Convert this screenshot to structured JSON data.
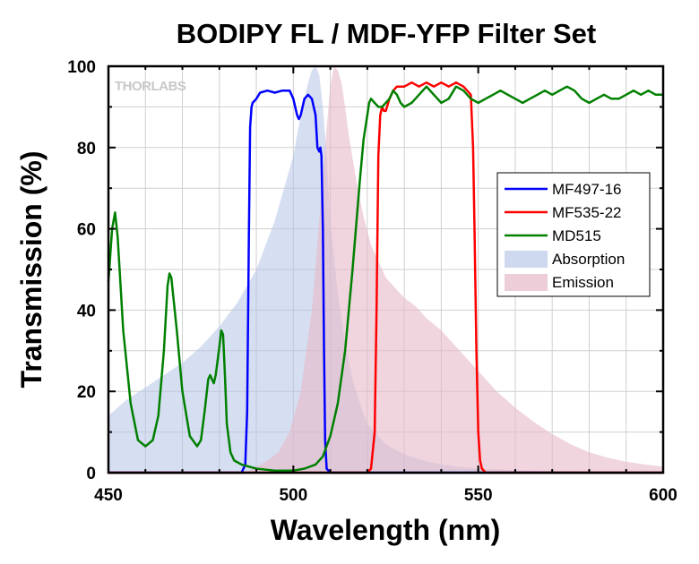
{
  "chart_data": {
    "type": "line",
    "title": "BODIPY FL / MDF-YFP Filter Set",
    "xlabel": "Wavelength (nm)",
    "ylabel": "Transmission (%)",
    "xlim": [
      450,
      600
    ],
    "ylim": [
      0,
      100
    ],
    "xticks": [
      450,
      500,
      550,
      600
    ],
    "yticks": [
      0,
      20,
      40,
      60,
      80,
      100
    ],
    "grid": true,
    "legend_position": "right",
    "watermark": "THORLABS",
    "series": [
      {
        "name": "MF497-16",
        "kind": "line",
        "color": "#0000ff",
        "points": [
          [
            450,
            0
          ],
          [
            486,
            0
          ],
          [
            487,
            2
          ],
          [
            487.5,
            15
          ],
          [
            488,
            60
          ],
          [
            488.3,
            85
          ],
          [
            488.7,
            90
          ],
          [
            489,
            91
          ],
          [
            490,
            92
          ],
          [
            491,
            93.5
          ],
          [
            493,
            94
          ],
          [
            495,
            93.5
          ],
          [
            497,
            94
          ],
          [
            499,
            94
          ],
          [
            500,
            92
          ],
          [
            501,
            88
          ],
          [
            501.5,
            87
          ],
          [
            502,
            88
          ],
          [
            503,
            92
          ],
          [
            504,
            93
          ],
          [
            505,
            92
          ],
          [
            506,
            88
          ],
          [
            506.5,
            80
          ],
          [
            507,
            79
          ],
          [
            507.3,
            80
          ],
          [
            507.6,
            78
          ],
          [
            508,
            60
          ],
          [
            508.3,
            30
          ],
          [
            508.6,
            8
          ],
          [
            509,
            1
          ],
          [
            510,
            0
          ],
          [
            600,
            0
          ]
        ]
      },
      {
        "name": "MF535-22",
        "kind": "line",
        "color": "#ff0000",
        "points": [
          [
            450,
            0
          ],
          [
            520,
            0
          ],
          [
            521,
            1
          ],
          [
            522,
            10
          ],
          [
            522.5,
            40
          ],
          [
            523,
            78
          ],
          [
            523.5,
            88
          ],
          [
            524,
            90
          ],
          [
            524.5,
            89
          ],
          [
            525,
            89
          ],
          [
            526,
            92
          ],
          [
            527,
            94
          ],
          [
            528,
            95
          ],
          [
            530,
            95
          ],
          [
            532,
            96
          ],
          [
            534,
            95
          ],
          [
            536,
            96
          ],
          [
            538,
            95
          ],
          [
            540,
            96
          ],
          [
            542,
            95
          ],
          [
            544,
            96
          ],
          [
            546,
            95
          ],
          [
            547,
            94
          ],
          [
            548,
            93
          ],
          [
            548.6,
            80
          ],
          [
            549,
            60
          ],
          [
            549.5,
            30
          ],
          [
            550,
            10
          ],
          [
            550.5,
            3
          ],
          [
            551,
            1
          ],
          [
            552,
            0
          ],
          [
            600,
            0
          ]
        ]
      },
      {
        "name": "MD515",
        "kind": "line",
        "color": "#008000",
        "points": [
          [
            450,
            47
          ],
          [
            451,
            60
          ],
          [
            451.8,
            64
          ],
          [
            452.5,
            58
          ],
          [
            454,
            35
          ],
          [
            456,
            17
          ],
          [
            458,
            8
          ],
          [
            460,
            6.5
          ],
          [
            462,
            8
          ],
          [
            463.5,
            14
          ],
          [
            465,
            30
          ],
          [
            466,
            46
          ],
          [
            466.5,
            49
          ],
          [
            467,
            48
          ],
          [
            468.5,
            35
          ],
          [
            470,
            20
          ],
          [
            472,
            9
          ],
          [
            474,
            6.5
          ],
          [
            475,
            8
          ],
          [
            476,
            15
          ],
          [
            477,
            23
          ],
          [
            477.5,
            24
          ],
          [
            478,
            23
          ],
          [
            478.5,
            22
          ],
          [
            479,
            24
          ],
          [
            480,
            31
          ],
          [
            480.5,
            35
          ],
          [
            481,
            34
          ],
          [
            481.5,
            24
          ],
          [
            482,
            12
          ],
          [
            483,
            5
          ],
          [
            484,
            3
          ],
          [
            486,
            2
          ],
          [
            488,
            1.5
          ],
          [
            490,
            1
          ],
          [
            495,
            0.5
          ],
          [
            500,
            0.5
          ],
          [
            503,
            1
          ],
          [
            506,
            2
          ],
          [
            508,
            4
          ],
          [
            510,
            9
          ],
          [
            512,
            17
          ],
          [
            514,
            30
          ],
          [
            516,
            50
          ],
          [
            518,
            72
          ],
          [
            519,
            82
          ],
          [
            520,
            88
          ],
          [
            520.5,
            91
          ],
          [
            521,
            92
          ],
          [
            522,
            91
          ],
          [
            523,
            90
          ],
          [
            524,
            90
          ],
          [
            525,
            91
          ],
          [
            526,
            92
          ],
          [
            527,
            94
          ],
          [
            528,
            93
          ],
          [
            529,
            91
          ],
          [
            530,
            90
          ],
          [
            532,
            91
          ],
          [
            534,
            93
          ],
          [
            536,
            95
          ],
          [
            538,
            93
          ],
          [
            540,
            91
          ],
          [
            542,
            92
          ],
          [
            544,
            95
          ],
          [
            546,
            94
          ],
          [
            548,
            92
          ],
          [
            550,
            91
          ],
          [
            552,
            92
          ],
          [
            554,
            93
          ],
          [
            556,
            94
          ],
          [
            558,
            93
          ],
          [
            560,
            92
          ],
          [
            562,
            91
          ],
          [
            564,
            92
          ],
          [
            566,
            93
          ],
          [
            568,
            94
          ],
          [
            570,
            93
          ],
          [
            572,
            94
          ],
          [
            574,
            95
          ],
          [
            576,
            94
          ],
          [
            578,
            92
          ],
          [
            580,
            91
          ],
          [
            582,
            92
          ],
          [
            584,
            93
          ],
          [
            586,
            92
          ],
          [
            588,
            92
          ],
          [
            590,
            93
          ],
          [
            592,
            94
          ],
          [
            594,
            93
          ],
          [
            596,
            94
          ],
          [
            598,
            93
          ],
          [
            600,
            93
          ]
        ]
      },
      {
        "name": "Absorption",
        "kind": "area",
        "color": "#b4c3e6",
        "opacity": 0.55,
        "points": [
          [
            450,
            14
          ],
          [
            455,
            18
          ],
          [
            460,
            21
          ],
          [
            465,
            24
          ],
          [
            470,
            27
          ],
          [
            475,
            31
          ],
          [
            480,
            36
          ],
          [
            485,
            42
          ],
          [
            490,
            50
          ],
          [
            495,
            62
          ],
          [
            500,
            78
          ],
          [
            502,
            88
          ],
          [
            504,
            96
          ],
          [
            505,
            99
          ],
          [
            506,
            100
          ],
          [
            507,
            98
          ],
          [
            508,
            90
          ],
          [
            509,
            78
          ],
          [
            510,
            62
          ],
          [
            512,
            44
          ],
          [
            514,
            32
          ],
          [
            516,
            23
          ],
          [
            518,
            17
          ],
          [
            520,
            12
          ],
          [
            525,
            7
          ],
          [
            530,
            4.5
          ],
          [
            535,
            3
          ],
          [
            540,
            2
          ],
          [
            545,
            1.4
          ],
          [
            550,
            1
          ],
          [
            560,
            0.6
          ],
          [
            570,
            0.4
          ],
          [
            580,
            0.3
          ],
          [
            600,
            0
          ]
        ]
      },
      {
        "name": "Emission",
        "kind": "area",
        "color": "#e6b9c8",
        "opacity": 0.6,
        "points": [
          [
            450,
            0
          ],
          [
            485,
            0
          ],
          [
            488,
            0.5
          ],
          [
            490,
            1.5
          ],
          [
            493,
            3
          ],
          [
            496,
            5
          ],
          [
            499,
            10
          ],
          [
            502,
            20
          ],
          [
            505,
            40
          ],
          [
            507,
            62
          ],
          [
            509,
            85
          ],
          [
            510,
            95
          ],
          [
            511,
            100
          ],
          [
            512,
            99
          ],
          [
            513,
            96
          ],
          [
            514,
            90
          ],
          [
            515,
            83
          ],
          [
            517,
            72
          ],
          [
            519,
            63
          ],
          [
            521,
            56
          ],
          [
            523,
            52
          ],
          [
            525,
            48
          ],
          [
            528,
            45
          ],
          [
            530,
            43
          ],
          [
            533,
            41
          ],
          [
            536,
            38
          ],
          [
            540,
            35
          ],
          [
            545,
            30
          ],
          [
            550,
            25
          ],
          [
            555,
            20
          ],
          [
            560,
            16
          ],
          [
            565,
            12.5
          ],
          [
            570,
            9.5
          ],
          [
            575,
            7
          ],
          [
            580,
            5
          ],
          [
            585,
            3.7
          ],
          [
            590,
            2.7
          ],
          [
            595,
            2
          ],
          [
            600,
            1.5
          ]
        ]
      }
    ]
  }
}
